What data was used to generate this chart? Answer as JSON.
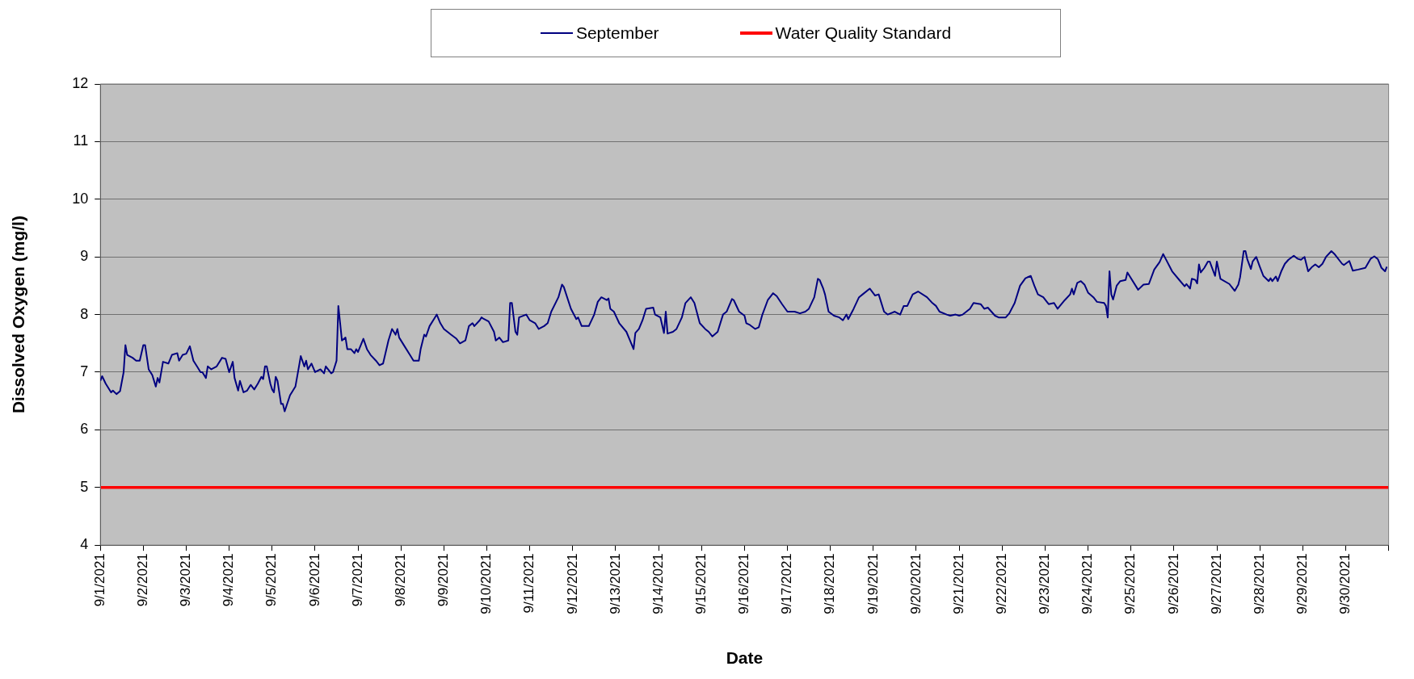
{
  "chart_data": {
    "type": "line",
    "xlabel": "Date",
    "ylabel": "Dissolved Oxygen (mg/l)",
    "ylim": [
      4,
      12
    ],
    "yticks": [
      4,
      5,
      6,
      7,
      8,
      9,
      10,
      11,
      12
    ],
    "xlim": [
      "2021-09-01",
      "2021-10-01"
    ],
    "xticks": [
      {
        "value": "2021-09-01",
        "label": "9/1/2021"
      },
      {
        "value": "2021-09-02",
        "label": "9/2/2021"
      },
      {
        "value": "2021-09-03",
        "label": "9/3/2021"
      },
      {
        "value": "2021-09-04",
        "label": "9/4/2021"
      },
      {
        "value": "2021-09-05",
        "label": "9/5/2021"
      },
      {
        "value": "2021-09-06",
        "label": "9/6/2021"
      },
      {
        "value": "2021-09-07",
        "label": "9/7/2021"
      },
      {
        "value": "2021-09-08",
        "label": "9/8/2021"
      },
      {
        "value": "2021-09-09",
        "label": "9/9/2021"
      },
      {
        "value": "2021-09-10",
        "label": "9/10/2021"
      },
      {
        "value": "2021-09-11",
        "label": "9/11/2021"
      },
      {
        "value": "2021-09-12",
        "label": "9/12/2021"
      },
      {
        "value": "2021-09-13",
        "label": "9/13/2021"
      },
      {
        "value": "2021-09-14",
        "label": "9/14/2021"
      },
      {
        "value": "2021-09-15",
        "label": "9/15/2021"
      },
      {
        "value": "2021-09-16",
        "label": "9/16/2021"
      },
      {
        "value": "2021-09-17",
        "label": "9/17/2021"
      },
      {
        "value": "2021-09-18",
        "label": "9/18/2021"
      },
      {
        "value": "2021-09-19",
        "label": "9/19/2021"
      },
      {
        "value": "2021-09-20",
        "label": "9/20/2021"
      },
      {
        "value": "2021-09-21",
        "label": "9/21/2021"
      },
      {
        "value": "2021-09-22",
        "label": "9/22/2021"
      },
      {
        "value": "2021-09-23",
        "label": "9/23/2021"
      },
      {
        "value": "2021-09-24",
        "label": "9/24/2021"
      },
      {
        "value": "2021-09-25",
        "label": "9/25/2021"
      },
      {
        "value": "2021-09-26",
        "label": "9/26/2021"
      },
      {
        "value": "2021-09-27",
        "label": "9/27/2021"
      },
      {
        "value": "2021-09-28",
        "label": "9/28/2021"
      },
      {
        "value": "2021-09-29",
        "label": "9/29/2021"
      },
      {
        "value": "2021-09-30",
        "label": "9/30/2021"
      },
      {
        "value": "2021-10-01",
        "label": null
      }
    ],
    "grid": "y",
    "legend": "top",
    "marker": "none",
    "line_style": "solid",
    "ref_lines": [
      {
        "axis": "y",
        "value": 5,
        "label": "Water Quality Standard",
        "color": "#ff0000"
      }
    ],
    "series": [
      {
        "name": "September",
        "color": "#000080",
        "x": [
          "2021-09-01T00:00",
          "2021-09-01T01:00",
          "2021-09-01T03:00",
          "2021-09-01T06:00",
          "2021-09-01T07:00",
          "2021-09-01T09:00",
          "2021-09-01T11:00",
          "2021-09-01T13:00",
          "2021-09-01T14:00",
          "2021-09-01T15:00",
          "2021-09-01T18:00",
          "2021-09-01T20:00",
          "2021-09-01T22:00",
          "2021-09-02T00:00",
          "2021-09-02T01:00",
          "2021-09-02T03:00",
          "2021-09-02T05:00",
          "2021-09-02T07:00",
          "2021-09-02T08:00",
          "2021-09-02T09:00",
          "2021-09-02T11:00",
          "2021-09-02T14:00",
          "2021-09-02T16:00",
          "2021-09-02T19:00",
          "2021-09-02T20:00",
          "2021-09-02T22:00",
          "2021-09-03T00:00",
          "2021-09-03T02:00",
          "2021-09-03T04:00",
          "2021-09-03T06:00",
          "2021-09-03T08:00",
          "2021-09-03T09:00",
          "2021-09-03T11:00",
          "2021-09-03T12:00",
          "2021-09-03T14:00",
          "2021-09-03T17:00",
          "2021-09-03T20:00",
          "2021-09-03T22:00",
          "2021-09-04T00:00",
          "2021-09-04T02:00",
          "2021-09-04T03:00",
          "2021-09-04T05:00",
          "2021-09-04T06:00",
          "2021-09-04T08:00",
          "2021-09-04T10:00",
          "2021-09-04T12:00",
          "2021-09-04T14:00",
          "2021-09-04T16:00",
          "2021-09-04T18:00",
          "2021-09-04T19:00",
          "2021-09-04T20:00",
          "2021-09-04T21:00",
          "2021-09-04T23:00",
          "2021-09-05T00:00",
          "2021-09-05T01:00",
          "2021-09-05T02:00",
          "2021-09-05T03:00",
          "2021-09-05T05:00",
          "2021-09-05T06:00",
          "2021-09-05T07:00",
          "2021-09-05T10:00",
          "2021-09-05T11:00",
          "2021-09-05T13:00",
          "2021-09-05T15:00",
          "2021-09-05T16:00",
          "2021-09-05T18:00",
          "2021-09-05T19:00",
          "2021-09-05T20:00",
          "2021-09-05T22:00",
          "2021-09-06T00:00",
          "2021-09-06T03:00",
          "2021-09-06T05:00",
          "2021-09-06T06:00",
          "2021-09-06T09:00",
          "2021-09-06T10:00",
          "2021-09-06T12:00",
          "2021-09-06T13:00",
          "2021-09-06T15:00",
          "2021-09-06T17:00",
          "2021-09-06T18:00",
          "2021-09-06T20:00",
          "2021-09-06T22:00",
          "2021-09-06T23:00",
          "2021-09-07T00:00",
          "2021-09-07T03:00",
          "2021-09-07T05:00",
          "2021-09-07T07:00",
          "2021-09-07T10:00",
          "2021-09-07T12:00",
          "2021-09-07T14:00",
          "2021-09-07T17:00",
          "2021-09-07T19:00",
          "2021-09-07T21:00",
          "2021-09-07T22:00",
          "2021-09-07T23:00",
          "2021-09-08T02:00",
          "2021-09-08T05:00",
          "2021-09-08T07:00",
          "2021-09-08T10:00",
          "2021-09-08T11:00",
          "2021-09-08T13:00",
          "2021-09-08T14:00",
          "2021-09-08T16:00",
          "2021-09-08T19:00",
          "2021-09-08T20:00",
          "2021-09-08T22:00",
          "2021-09-09T00:00",
          "2021-09-09T04:00",
          "2021-09-09T07:00",
          "2021-09-09T09:00",
          "2021-09-09T12:00",
          "2021-09-09T14:00",
          "2021-09-09T16:00",
          "2021-09-09T17:00",
          "2021-09-09T20:00",
          "2021-09-09T21:00",
          "2021-09-09T22:00",
          "2021-09-10T01:00",
          "2021-09-10T04:00",
          "2021-09-10T05:00",
          "2021-09-10T07:00",
          "2021-09-10T09:00",
          "2021-09-10T12:00",
          "2021-09-10T13:00",
          "2021-09-10T14:00",
          "2021-09-10T16:00",
          "2021-09-10T17:00",
          "2021-09-10T18:00",
          "2021-09-10T22:00",
          "2021-09-11T00:00",
          "2021-09-11T03:00",
          "2021-09-11T05:00",
          "2021-09-11T08:00",
          "2021-09-11T10:00",
          "2021-09-11T12:00",
          "2021-09-11T16:00",
          "2021-09-11T18:00",
          "2021-09-11T19:00",
          "2021-09-11T23:00",
          "2021-09-12T02:00",
          "2021-09-12T03:00",
          "2021-09-12T05:00",
          "2021-09-12T09:00",
          "2021-09-12T12:00",
          "2021-09-12T14:00",
          "2021-09-12T16:00",
          "2021-09-12T19:00",
          "2021-09-12T20:00",
          "2021-09-12T21:00",
          "2021-09-12T23:00",
          "2021-09-13T02:00",
          "2021-09-13T06:00",
          "2021-09-13T08:00",
          "2021-09-13T10:00",
          "2021-09-13T11:00",
          "2021-09-13T13:00",
          "2021-09-13T15:00",
          "2021-09-13T17:00",
          "2021-09-13T21:00",
          "2021-09-13T22:00",
          "2021-09-14T01:00",
          "2021-09-14T03:00",
          "2021-09-14T04:00",
          "2021-09-14T05:00",
          "2021-09-14T08:00",
          "2021-09-14T10:00",
          "2021-09-14T13:00",
          "2021-09-14T15:00",
          "2021-09-14T18:00",
          "2021-09-14T20:00",
          "2021-09-14T23:00",
          "2021-09-15T02:00",
          "2021-09-15T04:00",
          "2021-09-15T06:00",
          "2021-09-15T09:00",
          "2021-09-15T12:00",
          "2021-09-15T14:00",
          "2021-09-15T17:00",
          "2021-09-15T18:00",
          "2021-09-15T21:00",
          "2021-09-16T00:00",
          "2021-09-16T01:00",
          "2021-09-16T03:00",
          "2021-09-16T06:00",
          "2021-09-16T08:00",
          "2021-09-16T10:00",
          "2021-09-16T13:00",
          "2021-09-16T16:00",
          "2021-09-16T18:00",
          "2021-09-16T21:00",
          "2021-09-17T00:00",
          "2021-09-17T04:00",
          "2021-09-17T07:00",
          "2021-09-17T10:00",
          "2021-09-17T12:00",
          "2021-09-17T15:00",
          "2021-09-17T17:00",
          "2021-09-17T18:00",
          "2021-09-17T20:00",
          "2021-09-17T21:00",
          "2021-09-17T23:00",
          "2021-09-18T02:00",
          "2021-09-18T05:00",
          "2021-09-18T07:00",
          "2021-09-18T09:00",
          "2021-09-18T10:00",
          "2021-09-18T13:00",
          "2021-09-18T16:00",
          "2021-09-18T18:00",
          "2021-09-18T22:00",
          "2021-09-19T01:00",
          "2021-09-19T03:00",
          "2021-09-19T06:00",
          "2021-09-19T08:00",
          "2021-09-19T12:00",
          "2021-09-19T15:00",
          "2021-09-19T17:00",
          "2021-09-19T19:00",
          "2021-09-19T22:00",
          "2021-09-20T01:00",
          "2021-09-20T06:00",
          "2021-09-20T09:00",
          "2021-09-20T11:00",
          "2021-09-20T13:00",
          "2021-09-20T17:00",
          "2021-09-20T19:00",
          "2021-09-20T22:00",
          "2021-09-21T00:00",
          "2021-09-21T02:00",
          "2021-09-21T06:00",
          "2021-09-21T08:00",
          "2021-09-21T12:00",
          "2021-09-21T14:00",
          "2021-09-21T16:00",
          "2021-09-21T20:00",
          "2021-09-21T22:00",
          "2021-09-22T02:00",
          "2021-09-22T04:00",
          "2021-09-22T07:00",
          "2021-09-22T10:00",
          "2021-09-22T13:00",
          "2021-09-22T16:00",
          "2021-09-22T18:00",
          "2021-09-22T20:00",
          "2021-09-22T23:00",
          "2021-09-23T01:00",
          "2021-09-23T02:00",
          "2021-09-23T05:00",
          "2021-09-23T07:00",
          "2021-09-23T11:00",
          "2021-09-23T14:00",
          "2021-09-23T15:00",
          "2021-09-23T16:00",
          "2021-09-23T18:00",
          "2021-09-23T20:00",
          "2021-09-23T22:00",
          "2021-09-24T00:00",
          "2021-09-24T03:00",
          "2021-09-24T05:00",
          "2021-09-24T09:00",
          "2021-09-24T10:00",
          "2021-09-24T11:00",
          "2021-09-24T12:00",
          "2021-09-24T13:00",
          "2021-09-24T14:00",
          "2021-09-24T16:00",
          "2021-09-24T18:00",
          "2021-09-24T21:00",
          "2021-09-24T22:00",
          "2021-09-25T04:00",
          "2021-09-25T07:00",
          "2021-09-25T10:00",
          "2021-09-25T13:00",
          "2021-09-25T16:00",
          "2021-09-25T18:00",
          "2021-09-25T23:00",
          "2021-09-26T03:00",
          "2021-09-26T06:00",
          "2021-09-26T07:00",
          "2021-09-26T09:00",
          "2021-09-26T10:00",
          "2021-09-26T12:00",
          "2021-09-26T13:00",
          "2021-09-26T14:00",
          "2021-09-26T15:00",
          "2021-09-26T17:00",
          "2021-09-26T19:00",
          "2021-09-26T20:00",
          "2021-09-26T23:00",
          "2021-09-27T00:00",
          "2021-09-27T02:00",
          "2021-09-27T07:00",
          "2021-09-27T10:00",
          "2021-09-27T12:00",
          "2021-09-27T13:00",
          "2021-09-27T15:00",
          "2021-09-27T16:00",
          "2021-09-27T17:00",
          "2021-09-27T19:00",
          "2021-09-27T20:00",
          "2021-09-27T22:00",
          "2021-09-28T00:00",
          "2021-09-28T02:00",
          "2021-09-28T05:00",
          "2021-09-28T06:00",
          "2021-09-28T07:00",
          "2021-09-28T09:00",
          "2021-09-28T10:00",
          "2021-09-28T12:00",
          "2021-09-28T14:00",
          "2021-09-28T16:00",
          "2021-09-28T19:00",
          "2021-09-28T21:00",
          "2021-09-28T23:00",
          "2021-09-29T01:00",
          "2021-09-29T03:00",
          "2021-09-29T05:00",
          "2021-09-29T07:00",
          "2021-09-29T09:00",
          "2021-09-29T11:00",
          "2021-09-29T13:00",
          "2021-09-29T16:00",
          "2021-09-29T18:00",
          "2021-09-29T22:00",
          "2021-09-29T23:00",
          "2021-09-30T02:00",
          "2021-09-30T04:00",
          "2021-09-30T07:00",
          "2021-09-30T11:00",
          "2021-09-30T14:00",
          "2021-09-30T16:00",
          "2021-09-30T18:00",
          "2021-09-30T20:00",
          "2021-09-30T22:00",
          "2021-09-30T23:00"
        ],
        "values": [
          6.85,
          6.93,
          6.8,
          6.65,
          6.68,
          6.62,
          6.67,
          7.0,
          7.47,
          7.3,
          7.25,
          7.2,
          7.2,
          7.47,
          7.47,
          7.05,
          6.95,
          6.75,
          6.9,
          6.82,
          7.18,
          7.15,
          7.3,
          7.33,
          7.2,
          7.3,
          7.32,
          7.45,
          7.2,
          7.1,
          7.0,
          7.0,
          6.9,
          7.1,
          7.05,
          7.1,
          7.25,
          7.23,
          7.0,
          7.18,
          6.9,
          6.68,
          6.85,
          6.65,
          6.68,
          6.78,
          6.7,
          6.8,
          6.92,
          6.88,
          7.1,
          7.1,
          6.8,
          6.7,
          6.65,
          6.92,
          6.85,
          6.45,
          6.45,
          6.32,
          6.6,
          6.65,
          6.75,
          7.1,
          7.28,
          7.1,
          7.2,
          7.05,
          7.15,
          7.0,
          7.05,
          6.98,
          7.1,
          6.98,
          7.0,
          7.2,
          8.15,
          7.55,
          7.6,
          7.4,
          7.4,
          7.33,
          7.4,
          7.35,
          7.58,
          7.4,
          7.3,
          7.2,
          7.12,
          7.15,
          7.55,
          7.75,
          7.65,
          7.75,
          7.6,
          7.45,
          7.3,
          7.2,
          7.2,
          7.4,
          7.65,
          7.62,
          7.8,
          7.95,
          8.0,
          7.85,
          7.75,
          7.65,
          7.58,
          7.5,
          7.55,
          7.8,
          7.85,
          7.8,
          7.9,
          7.95,
          7.93,
          7.88,
          7.7,
          7.55,
          7.6,
          7.52,
          7.55,
          8.2,
          8.2,
          7.7,
          7.65,
          7.95,
          8.0,
          7.9,
          7.85,
          7.75,
          7.8,
          7.85,
          8.05,
          8.3,
          8.52,
          8.48,
          8.1,
          7.92,
          7.95,
          7.8,
          7.8,
          8.0,
          8.22,
          8.3,
          8.25,
          8.28,
          8.1,
          8.05,
          7.85,
          7.7,
          7.55,
          7.4,
          7.68,
          7.75,
          7.9,
          8.1,
          8.12,
          8.0,
          7.95,
          7.68,
          8.05,
          7.67,
          7.7,
          7.75,
          7.95,
          8.2,
          8.3,
          8.2,
          7.85,
          7.75,
          7.7,
          7.62,
          7.7,
          8.0,
          8.05,
          8.27,
          8.25,
          8.05,
          7.98,
          7.85,
          7.82,
          7.75,
          7.78,
          8.0,
          8.25,
          8.37,
          8.32,
          8.18,
          8.05,
          8.05,
          8.02,
          8.05,
          8.1,
          8.3,
          8.62,
          8.6,
          8.45,
          8.35,
          8.05,
          7.98,
          7.95,
          7.9,
          8.0,
          7.92,
          8.1,
          8.3,
          8.35,
          8.45,
          8.33,
          8.35,
          8.05,
          8.0,
          8.05,
          8.0,
          8.15,
          8.15,
          8.35,
          8.4,
          8.3,
          8.2,
          8.15,
          8.05,
          8.0,
          7.98,
          8.0,
          7.98,
          8.0,
          8.1,
          8.2,
          8.18,
          8.1,
          8.12,
          7.98,
          7.95,
          7.95,
          8.02,
          8.2,
          8.5,
          8.63,
          8.67,
          8.5,
          8.35,
          8.3,
          8.22,
          8.18,
          8.2,
          8.1,
          8.25,
          8.35,
          8.45,
          8.35,
          8.55,
          8.58,
          8.52,
          8.38,
          8.3,
          8.22,
          8.2,
          8.15,
          7.95,
          8.75,
          8.35,
          8.26,
          8.5,
          8.58,
          8.6,
          8.73,
          8.43,
          8.52,
          8.53,
          8.78,
          8.91,
          9.05,
          8.75,
          8.6,
          8.49,
          8.53,
          8.45,
          8.62,
          8.6,
          8.54,
          8.87,
          8.73,
          8.81,
          8.92,
          8.92,
          8.67,
          8.92,
          8.62,
          8.53,
          8.41,
          8.52,
          8.65,
          9.1,
          9.1,
          8.96,
          8.79,
          8.92,
          9.0,
          8.83,
          8.67,
          8.58,
          8.63,
          8.58,
          8.66,
          8.58,
          8.75,
          8.88,
          8.95,
          9.02,
          8.97,
          8.95,
          9.0,
          8.75,
          8.82,
          8.87,
          8.82,
          8.88,
          9.0,
          9.1,
          9.04,
          8.88,
          8.86,
          8.93,
          8.76,
          8.78,
          8.81,
          8.97,
          9.01,
          8.96,
          8.81,
          8.75,
          8.83
        ]
      }
    ]
  }
}
